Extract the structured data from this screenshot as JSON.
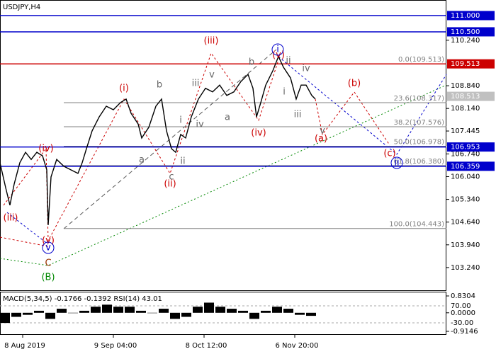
{
  "chart_data": {
    "type": "line",
    "title": "USDJPY,H4",
    "color": "#000000",
    "x": [
      0,
      2,
      3.5,
      5,
      7,
      9,
      11,
      13,
      15,
      16.5,
      17,
      18,
      20,
      22.5,
      25,
      27.5,
      29,
      30.5,
      32.5,
      35,
      37.5,
      40,
      42.5,
      44.5,
      46.25,
      48.75,
      50,
      52.5,
      55,
      57,
      58.75,
      60.5,
      62,
      63.75,
      65.5,
      67.5,
      70,
      72.5,
      75,
      77.5,
      80,
      82.5,
      85,
      87.5,
      89.25,
      90.5,
      92,
      93.75,
      96.25,
      98.25,
      100,
      102.5,
      104.5,
      106.25,
      108,
      110,
      111.25
    ],
    "values": [
      106.465,
      105.7,
      105.16,
      105.81,
      106.47,
      106.79,
      106.57,
      106.79,
      106.68,
      106.25,
      104.55,
      106.03,
      106.57,
      106.36,
      106.25,
      106.14,
      106.47,
      106.9,
      107.45,
      107.88,
      108.21,
      108.1,
      108.32,
      108.43,
      107.99,
      107.66,
      107.23,
      107.56,
      108.21,
      108.43,
      107.45,
      106.9,
      106.79,
      107.34,
      107.23,
      107.88,
      108.43,
      108.76,
      108.65,
      108.86,
      108.54,
      108.65,
      108.97,
      109.19,
      108.76,
      107.88,
      108.32,
      108.86,
      109.3,
      109.74,
      109.41,
      109.08,
      108.43,
      108.86,
      108.86,
      108.54,
      108.43
    ],
    "xlim": [
      0,
      157.5
    ],
    "xticks": [
      {
        "value": 8,
        "label": "8 Aug 2019"
      },
      {
        "value": 40,
        "label": "9 Sep 04:00"
      },
      {
        "value": 72,
        "label": "8 Oct 12:00"
      },
      {
        "value": 104,
        "label": "6 Nov 20:00"
      }
    ],
    "ylim": [
      102.54,
      111.48
    ],
    "yticks": [
      {
        "value": 110.24,
        "label": "110.240"
      },
      {
        "value": 108.84,
        "label": "108.840"
      },
      {
        "value": 108.14,
        "label": "108.140"
      },
      107.445,
      {
        "value": 106.74,
        "label": "106.740"
      },
      {
        "value": 106.04,
        "label": "106.040"
      },
      {
        "value": 105.34,
        "label": "105.340"
      },
      {
        "value": 104.64,
        "label": "104.640"
      },
      {
        "value": 103.94,
        "label": "103.940"
      },
      {
        "value": 103.24,
        "label": "103.240"
      }
    ],
    "levels": [
      {
        "value": 111,
        "label": "111.000",
        "color": "#0000cc",
        "line": true
      },
      {
        "value": 110.5,
        "label": "110.500",
        "color": "#0000cc",
        "line": true
      },
      {
        "value": 109.513,
        "label": "109.513",
        "color": "#cc0000",
        "line": true
      },
      {
        "value": 108.513,
        "label": "108.513",
        "color": "#c0c0c0",
        "line": false
      },
      {
        "value": 106.953,
        "label": "106.953",
        "color": "#0000cc",
        "line": true
      },
      {
        "value": 106.359,
        "label": "106.359",
        "color": "#0000cc",
        "line": true
      }
    ],
    "fib_levels": [
      {
        "value": 109.513,
        "label": "0.0(109.513)"
      },
      {
        "value": 108.317,
        "label": "23.6(108.317)"
      },
      {
        "value": 107.576,
        "label": "38.2(107.576)"
      },
      {
        "value": 106.978,
        "label": "50.0(106.978)"
      },
      {
        "value": 106.38,
        "label": "61.8(106.380)"
      },
      {
        "value": 104.443,
        "label": "100.0(104.443)"
      }
    ],
    "wave_labels": [
      {
        "text": "(iii)",
        "color": "#cc0000"
      },
      {
        "text": "(iv)",
        "color": "#cc0000"
      },
      {
        "text": "(v)",
        "color": "#cc0000"
      },
      {
        "text": "v",
        "color": "#0000cc",
        "circled": true
      },
      {
        "text": "C",
        "color": "#993300"
      },
      {
        "text": "(B)",
        "color": "#008800"
      },
      {
        "text": "(i)",
        "color": "#cc0000"
      },
      {
        "text": "(ii)",
        "color": "#cc0000"
      },
      {
        "text": "(iii)",
        "color": "#cc0000"
      },
      {
        "text": "(iv)",
        "color": "#cc0000"
      },
      {
        "text": "(v)",
        "color": "#cc0000"
      },
      {
        "text": "i",
        "color": "#0000cc",
        "circled": true
      },
      {
        "text": "a",
        "color": "#666666"
      },
      {
        "text": "b",
        "color": "#666666"
      },
      {
        "text": "c",
        "color": "#666666"
      },
      {
        "text": "i",
        "color": "#666666"
      },
      {
        "text": "ii",
        "color": "#666666"
      },
      {
        "text": "iii",
        "color": "#666666"
      },
      {
        "text": "iv",
        "color": "#666666"
      },
      {
        "text": "v",
        "color": "#666666"
      },
      {
        "text": "a",
        "color": "#666666"
      },
      {
        "text": "b",
        "color": "#666666"
      },
      {
        "text": "i",
        "color": "#666666"
      },
      {
        "text": "ii",
        "color": "#666666"
      },
      {
        "text": "iii",
        "color": "#666666"
      },
      {
        "text": "iv",
        "color": "#666666"
      },
      {
        "text": "v",
        "color": "#666666"
      },
      {
        "text": "(a)",
        "color": "#cc0000"
      },
      {
        "text": "(b)",
        "color": "#cc0000"
      },
      {
        "text": "(c)",
        "color": "#cc0000"
      },
      {
        "text": "ii",
        "color": "#0000cc",
        "circled": true
      }
    ],
    "macd": {
      "title": "MACD(5,34,5) -0.1766 -0.1392 RSI(14) 43.01",
      "x": [
        0,
        4,
        8,
        12,
        16,
        20,
        24,
        28,
        32,
        36,
        40,
        44,
        48,
        52,
        56,
        60,
        64,
        68,
        72,
        76,
        80,
        84,
        88,
        92,
        96,
        100,
        104,
        108
      ],
      "values": [
        -0.5,
        -0.2,
        -0.1,
        0.1,
        -0.3,
        0.2,
        0.0,
        0.1,
        0.3,
        0.4,
        0.3,
        0.3,
        0.1,
        0.0,
        0.2,
        -0.3,
        -0.2,
        0.3,
        0.5,
        0.3,
        0.2,
        0.1,
        -0.3,
        0.1,
        0.3,
        0.2,
        -0.1,
        -0.15
      ],
      "ylim": [
        -0.9146,
        0.8304
      ],
      "yticks": [
        0.8304,
        {
          "value": 0,
          "label": "0.0000"
        },
        -0.9146
      ],
      "rsi_ylim": [
        -80,
        128
      ],
      "rsi_yticks": [
        {
          "value": 70,
          "label": "70.00"
        },
        {
          "value": -30,
          "label": "-30.00"
        }
      ]
    }
  }
}
